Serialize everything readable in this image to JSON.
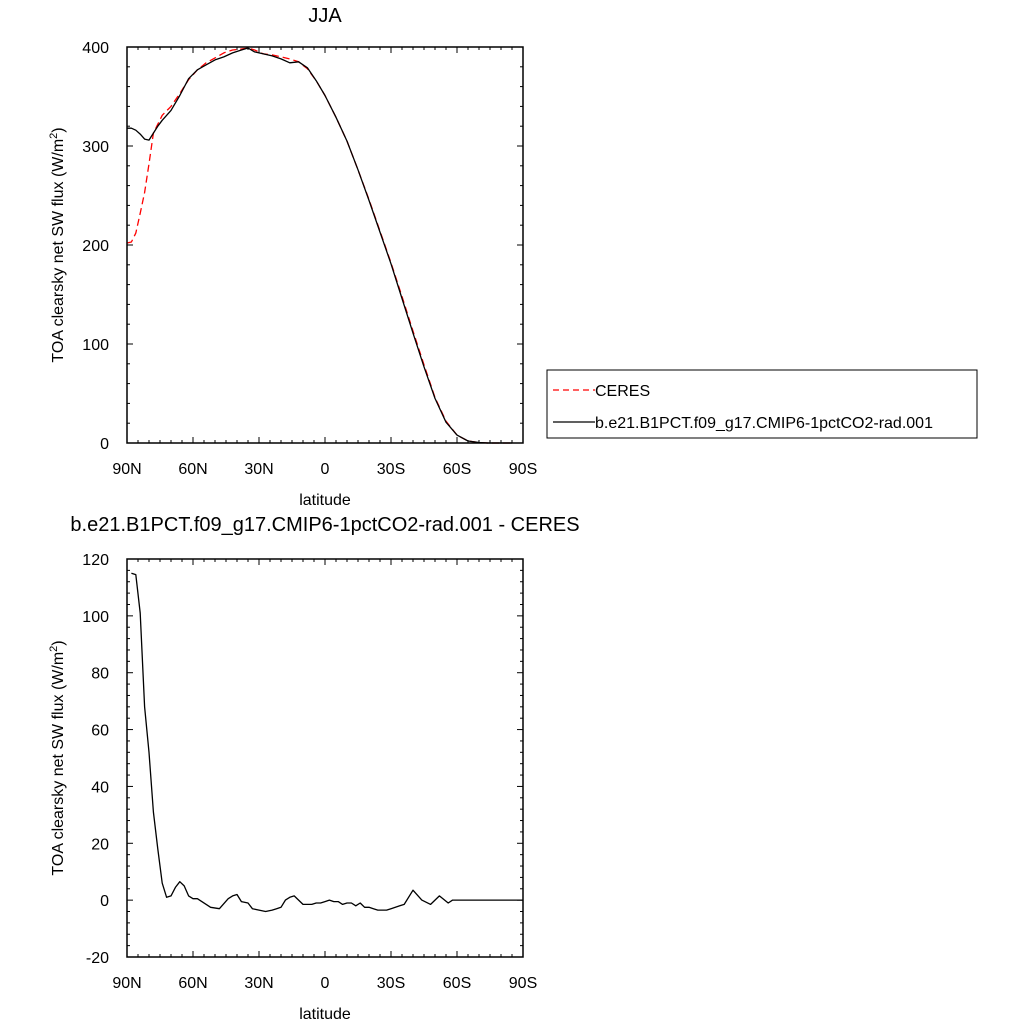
{
  "chart_data": [
    {
      "type": "line",
      "title": "JJA",
      "xlabel": "latitude",
      "ylabel": "TOA clearsky net SW flux (W/m",
      "ylabel_sup": "2",
      "ylabel_close": ")",
      "xlim": [
        90,
        -90
      ],
      "ylim": [
        0,
        400
      ],
      "x_ticks": [
        {
          "value": 90,
          "label": "90N"
        },
        {
          "value": 60,
          "label": "60N"
        },
        {
          "value": 30,
          "label": "30N"
        },
        {
          "value": 0,
          "label": "0"
        },
        {
          "value": -30,
          "label": "30S"
        },
        {
          "value": -60,
          "label": "60S"
        },
        {
          "value": -90,
          "label": "90S"
        }
      ],
      "y_ticks": [
        0,
        100,
        200,
        300,
        400
      ],
      "legend_position": "right",
      "series": [
        {
          "name": "CERES",
          "color": "#ff0000",
          "dash": "dashed",
          "x": [
            90,
            88,
            86,
            84,
            82,
            80,
            78,
            76,
            74,
            70,
            66,
            62,
            58,
            54,
            50,
            46,
            42,
            38,
            35,
            32,
            28,
            24,
            20,
            16,
            12,
            8,
            4,
            0,
            -5,
            -10,
            -15,
            -20,
            -25,
            -30,
            -35,
            -40,
            -45,
            -50,
            -55,
            -60,
            -65,
            -70,
            -74,
            -78,
            -80,
            -82,
            -85
          ],
          "y": [
            202,
            203,
            212,
            232,
            253,
            282,
            313,
            322,
            331,
            340,
            353,
            367,
            377,
            384,
            389,
            394,
            397,
            398,
            399,
            397,
            393,
            392,
            390,
            388,
            385,
            378,
            366,
            351,
            329,
            305,
            276,
            246,
            214,
            182,
            148,
            113,
            79,
            46,
            22,
            8,
            2,
            0.5,
            0,
            0,
            0,
            0,
            0
          ]
        },
        {
          "name": "b.e21.B1PCT.f09_g17.CMIP6-1pctCO2-rad.001",
          "color": "#000000",
          "dash": "solid",
          "x": [
            90,
            88,
            86,
            84,
            82,
            80,
            78,
            76,
            74,
            70,
            66,
            62,
            58,
            54,
            50,
            46,
            42,
            38,
            35,
            32,
            28,
            24,
            20,
            16,
            12,
            8,
            4,
            0,
            -5,
            -10,
            -15,
            -20,
            -25,
            -30,
            -35,
            -40,
            -45,
            -50,
            -55,
            -60,
            -65,
            -70,
            -74,
            -78,
            -80,
            -82,
            -85
          ],
          "y": [
            318,
            318,
            316,
            312,
            307,
            306,
            313,
            320,
            326,
            336,
            351,
            368,
            377,
            382,
            387,
            390,
            394,
            397,
            399,
            395,
            393,
            391,
            388,
            384,
            385,
            379,
            366,
            351,
            329,
            305,
            276,
            245,
            213,
            181,
            146,
            111,
            77,
            45,
            21,
            8,
            2,
            0.5,
            0,
            0,
            0,
            0,
            0
          ]
        }
      ]
    },
    {
      "type": "line",
      "title": "b.e21.B1PCT.f09_g17.CMIP6-1pctCO2-rad.001 - CERES",
      "xlabel": "latitude",
      "ylabel": "TOA clearsky net SW flux (W/m",
      "ylabel_sup": "2",
      "ylabel_close": ")",
      "xlim": [
        90,
        -90
      ],
      "ylim": [
        -20,
        120
      ],
      "x_ticks": [
        {
          "value": 90,
          "label": "90N"
        },
        {
          "value": 60,
          "label": "60N"
        },
        {
          "value": 30,
          "label": "30N"
        },
        {
          "value": 0,
          "label": "0"
        },
        {
          "value": -30,
          "label": "30S"
        },
        {
          "value": -60,
          "label": "60S"
        },
        {
          "value": -90,
          "label": "90S"
        }
      ],
      "y_ticks": [
        -20,
        0,
        20,
        40,
        60,
        80,
        100,
        120
      ],
      "series": [
        {
          "color": "#000000",
          "dash": "solid",
          "x": [
            88,
            86,
            84,
            82,
            80,
            78,
            76,
            74,
            72,
            70,
            68,
            66,
            64,
            62,
            60,
            58,
            56,
            54,
            52,
            48,
            44,
            42,
            40,
            38,
            35,
            33,
            30,
            27,
            24,
            22,
            20,
            18,
            16,
            14,
            12,
            10,
            8,
            6,
            4,
            2,
            0,
            -2,
            -4,
            -6,
            -8,
            -10,
            -12,
            -14,
            -16,
            -18,
            -20,
            -22,
            -24,
            -26,
            -28,
            -30,
            -32,
            -34,
            -36,
            -40,
            -44,
            -48,
            -52,
            -56,
            -58,
            -60,
            -62,
            -64,
            -66,
            -68,
            -70,
            -72,
            -74,
            -76,
            -80,
            -85,
            -90
          ],
          "y": [
            115,
            114.5,
            101,
            68,
            52,
            31,
            18,
            6,
            1,
            1.5,
            4.5,
            6.5,
            5,
            1.5,
            0.5,
            0.5,
            -0.5,
            -1.5,
            -2.5,
            -3,
            0.5,
            1.5,
            2,
            -0.5,
            -1,
            -3,
            -3.5,
            -4,
            -3.5,
            -3,
            -2.5,
            0,
            1,
            1.5,
            0,
            -1.5,
            -1.5,
            -1.5,
            -1,
            -1,
            -0.5,
            0,
            -0.5,
            -0.5,
            -1.5,
            -1,
            -1,
            -2,
            -1,
            -2.5,
            -2.5,
            -3,
            -3.5,
            -3.5,
            -3.5,
            -3,
            -2.5,
            -2,
            -1.5,
            3.5,
            0,
            -1.5,
            1.5,
            -1,
            0,
            0,
            0,
            0,
            0,
            0,
            0,
            0,
            0,
            0,
            0,
            0,
            0
          ]
        }
      ]
    }
  ]
}
